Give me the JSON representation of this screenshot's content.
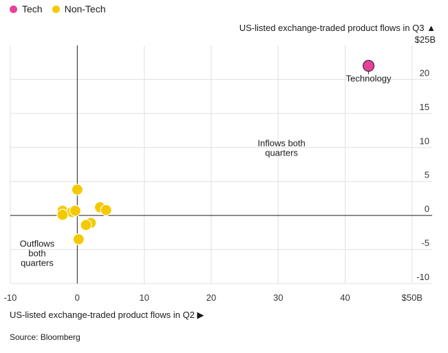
{
  "legend": [
    {
      "label": "Tech",
      "color": "#e8419b"
    },
    {
      "label": "Non-Tech",
      "color": "#f5c900"
    }
  ],
  "chart_data": {
    "type": "scatter",
    "ylabel_line1": "US-listed exchange-traded product flows in Q3 ▲",
    "ylabel_line2": "$25B",
    "xlabel": "US-listed exchange-traded product flows in Q2 ▶",
    "xlim": [
      -10,
      53
    ],
    "ylim": [
      -10,
      25
    ],
    "x_ticks": [
      -10,
      0,
      10,
      20,
      30,
      40,
      50
    ],
    "x_tick_labels": [
      "-10",
      "0",
      "10",
      "20",
      "30",
      "40",
      "$50B"
    ],
    "y_ticks": [
      20,
      15,
      10,
      5,
      0,
      -5,
      -10
    ],
    "y_tick_labels": [
      "20",
      "15",
      "10",
      "5",
      "0",
      "-5",
      "-10"
    ],
    "grid": true,
    "series": [
      {
        "name": "Tech",
        "color": "#e8419b",
        "points": [
          {
            "x": 43.5,
            "y": 22.0,
            "label": "Technology"
          }
        ]
      },
      {
        "name": "Non-Tech",
        "color": "#f5c900",
        "points": [
          {
            "x": 0.0,
            "y": 3.8
          },
          {
            "x": -2.2,
            "y": 0.7
          },
          {
            "x": -0.8,
            "y": 0.5
          },
          {
            "x": -0.3,
            "y": 0.7
          },
          {
            "x": -2.2,
            "y": 0.1
          },
          {
            "x": 3.4,
            "y": 1.2
          },
          {
            "x": 4.3,
            "y": 0.8
          },
          {
            "x": 2.0,
            "y": -1.1
          },
          {
            "x": 1.3,
            "y": -1.4
          },
          {
            "x": 0.2,
            "y": -3.5
          }
        ]
      }
    ],
    "annotations": [
      {
        "lines": [
          "Inflows both",
          "quarters"
        ],
        "x": 30.5,
        "y": 10.2
      },
      {
        "lines": [
          "Outflows",
          "both",
          "quarters"
        ],
        "x": -6.0,
        "y": -4.6
      }
    ]
  },
  "footer": {
    "source": "Source: Bloomberg"
  }
}
